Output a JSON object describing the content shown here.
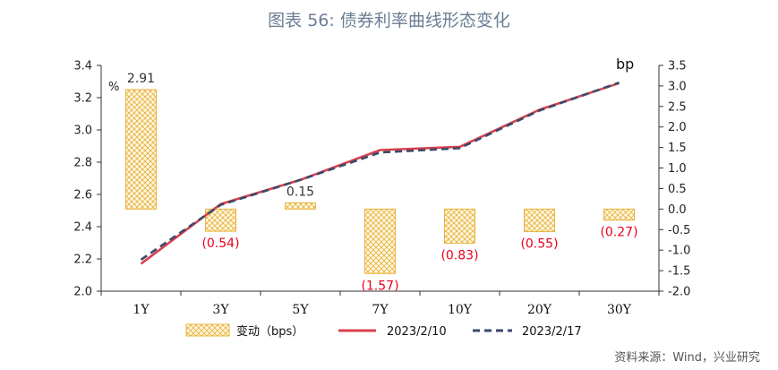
{
  "page": {
    "title": "图表 56: 债券利率曲线形态变化",
    "source": "资料来源：Wind，兴业研究"
  },
  "chart_data": {
    "type": "bar",
    "categories": [
      "1Y",
      "3Y",
      "5Y",
      "7Y",
      "10Y",
      "20Y",
      "30Y"
    ],
    "left_axis": {
      "unit_label": "%",
      "ylim": [
        2.0,
        3.4
      ],
      "ticks": [
        "2.0",
        "2.2",
        "2.4",
        "2.6",
        "2.8",
        "3.0",
        "3.2",
        "3.4"
      ]
    },
    "right_axis": {
      "unit_label": "bp",
      "ylim": [
        -2.0,
        3.5
      ],
      "ticks": [
        "-2.0",
        "-1.5",
        "-1.0",
        "-0.5",
        "0.0",
        "0.5",
        "1.0",
        "1.5",
        "2.0",
        "2.5",
        "3.0",
        "3.5"
      ]
    },
    "bars": {
      "name": "变动（bps）",
      "axis": "right",
      "values": [
        2.91,
        -0.54,
        0.15,
        -1.57,
        -0.83,
        -0.55,
        -0.27
      ],
      "labels": [
        "2.91",
        "(0.54)",
        "0.15",
        "(1.57)",
        "(0.83)",
        "(0.55)",
        "(0.27)"
      ],
      "label_colors": [
        "#333333",
        "#e8001c",
        "#333333",
        "#e8001c",
        "#e8001c",
        "#e8001c",
        "#e8001c"
      ]
    },
    "series": [
      {
        "name": "2023/2/10",
        "axis": "left",
        "color": "#d9414e",
        "style": "solid",
        "values": [
          2.17,
          2.54,
          2.69,
          2.875,
          2.895,
          3.125,
          3.29
        ]
      },
      {
        "name": "2023/2/17",
        "axis": "left",
        "color": "#3b4a6b",
        "style": "dashed",
        "values": [
          2.195,
          2.535,
          2.69,
          2.86,
          2.887,
          3.12,
          3.293
        ]
      }
    ],
    "grid": false,
    "legend_position": "bottom",
    "bar_color": "#e8b33a"
  }
}
